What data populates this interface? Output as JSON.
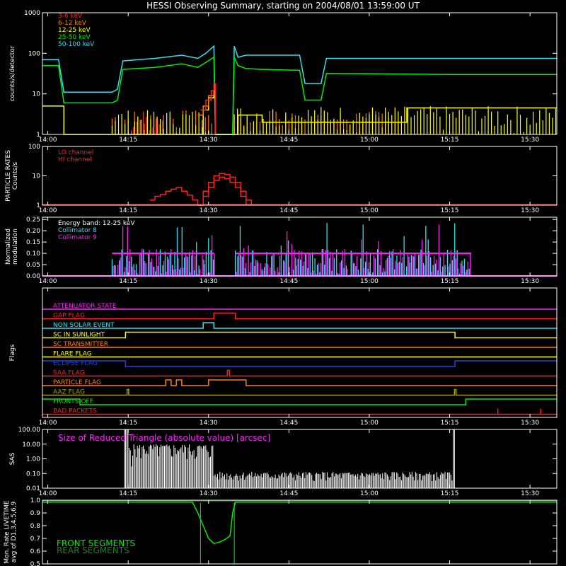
{
  "title": "HESSI Observing Summary, starting on 2004/08/01 13:59:00 UT",
  "colors": {
    "bg": "#000000",
    "axis": "#ffffff",
    "red": "#ff2020",
    "orange": "#ff8000",
    "yellow": "#ffff00",
    "green": "#00ee00",
    "cyan": "#30e0f0",
    "magenta": "#ff20ff",
    "blue": "#2040ff",
    "white": "#ffffff",
    "olive": "#a0a000",
    "darkgreen": "#208020"
  },
  "x_axis": {
    "tick_labels": [
      "14:00",
      "14:15",
      "14:30",
      "14:45",
      "15:00",
      "15:15",
      "15:30"
    ],
    "tick_minutes": [
      0,
      15,
      30,
      45,
      60,
      75,
      90
    ],
    "range_minutes": [
      -1,
      95
    ]
  },
  "chart_data": [
    {
      "id": "count_rates",
      "type": "line",
      "ylabel": "counts/s/detector",
      "y_scale": "log",
      "ylim": [
        1,
        1000
      ],
      "y_tick_labels": [
        "1",
        "10",
        "100",
        "1000"
      ],
      "y_tick_values": [
        1,
        10,
        100,
        1000
      ],
      "legend": [
        {
          "name": "3-6 keV",
          "color": "#ff2020"
        },
        {
          "name": "6-12 keV",
          "color": "#ff8000"
        },
        {
          "name": "12-25 keV",
          "color": "#ffff00"
        },
        {
          "name": "25-50 keV",
          "color": "#00ee00"
        },
        {
          "name": "50-100 keV",
          "color": "#30e0f0"
        }
      ],
      "series": [
        {
          "name": "50-100 keV",
          "color": "#30e0f0",
          "x": [
            -1,
            2,
            3,
            12,
            13,
            14,
            20,
            25,
            28,
            29.5,
            31,
            31.3,
            34.5,
            34.8,
            35.5,
            37,
            40,
            47,
            48,
            51,
            52,
            75,
            95
          ],
          "y": [
            70,
            70,
            11,
            11,
            13,
            65,
            75,
            90,
            75,
            100,
            150,
            1,
            1,
            150,
            80,
            90,
            90,
            90,
            18,
            18,
            75,
            75,
            75
          ]
        },
        {
          "name": "25-50 keV",
          "color": "#00ee00",
          "x": [
            -1,
            2,
            3,
            12,
            13,
            14,
            20,
            25,
            28,
            29.5,
            31,
            31.3,
            34.5,
            34.8,
            35.5,
            37,
            40,
            47,
            48,
            51,
            52,
            75,
            95
          ],
          "y": [
            50,
            50,
            6,
            6,
            7,
            40,
            45,
            55,
            45,
            60,
            80,
            1,
            1,
            80,
            50,
            42,
            40,
            38,
            7,
            7,
            32,
            30,
            30
          ]
        },
        {
          "name": "12-25 keV",
          "color": "#ffff00",
          "x": [
            -1,
            2,
            3,
            12,
            29,
            30,
            31,
            31.3,
            34.8,
            35.5,
            40,
            66,
            67,
            95
          ],
          "y": [
            5,
            5,
            1,
            1,
            4,
            8,
            12,
            1,
            1,
            3,
            2,
            2,
            4.5,
            4.5
          ]
        },
        {
          "name": "6-12 keV",
          "color": "#ff8000",
          "x": [
            28,
            29,
            30,
            31,
            31.3
          ],
          "y": [
            3,
            5,
            9,
            15,
            1
          ]
        },
        {
          "name": "3-6 keV",
          "color": "#ff2020",
          "x": [
            28.5,
            29.5,
            30.5,
            31,
            31.3
          ],
          "y": [
            4,
            7,
            12,
            18,
            1
          ]
        }
      ]
    },
    {
      "id": "particle_rates",
      "type": "line",
      "ylabel": "PARTICLE RATES Counts/s",
      "y_scale": "log",
      "ylim": [
        1,
        100
      ],
      "y_tick_labels": [
        "1",
        "10",
        "100"
      ],
      "y_tick_values": [
        1,
        10,
        100
      ],
      "legend": [
        {
          "name": "LO channel",
          "color": "#ff2020"
        },
        {
          "name": "HI channel",
          "color": "#ff2020"
        }
      ],
      "series": [
        {
          "name": "LO channel",
          "color": "#ff2020",
          "x": [
            19,
            20,
            21,
            22,
            23,
            24,
            25,
            26,
            27,
            28,
            29,
            30,
            31,
            32,
            33,
            34,
            35,
            36,
            37,
            38
          ],
          "y": [
            1.5,
            2,
            2.3,
            3,
            3.5,
            4,
            3,
            2.2,
            1.5,
            1,
            3,
            6,
            10,
            12,
            11,
            9,
            6,
            3,
            1.5,
            1
          ]
        },
        {
          "name": "HI channel",
          "color": "#ff2020",
          "x": [
            29,
            30,
            31,
            32,
            33,
            34,
            35,
            36,
            37
          ],
          "y": [
            2,
            4,
            7,
            9,
            8,
            6,
            4,
            2,
            1
          ]
        }
      ]
    },
    {
      "id": "modulation",
      "type": "line",
      "ylabel": "Normalized modulation",
      "ylim": [
        0,
        0.26
      ],
      "y_tick_labels": [
        "0.00",
        "0.05",
        "0.10",
        "0.15",
        "0.20",
        "0.25"
      ],
      "y_tick_values": [
        0,
        0.05,
        0.1,
        0.15,
        0.2,
        0.25
      ],
      "legend": [
        {
          "name": "Energy band: 12-25 keV",
          "color": "#ffffff"
        },
        {
          "name": "Collimator 8",
          "color": "#30e0f0"
        },
        {
          "name": "Collimator 9",
          "color": "#ff20ff"
        }
      ],
      "series": [
        {
          "name": "Collimator 8",
          "color": "#30e0f0",
          "segments": [
            [
              12,
              31
            ],
            [
              35,
              79
            ]
          ],
          "level": 0.1
        },
        {
          "name": "Collimator 9",
          "color": "#ff20ff",
          "segments": [
            [
              12,
              31
            ],
            [
              35,
              79
            ]
          ],
          "level": 0.1
        }
      ]
    },
    {
      "id": "flags",
      "type": "line",
      "ylabel": "Flags",
      "series": [
        {
          "name": "ATTENUATOR STATE",
          "color": "#ff20ff",
          "x": [
            -1,
            95
          ],
          "y": [
            0,
            0
          ]
        },
        {
          "name": "GAP FLAG",
          "color": "#ff2020",
          "x": [
            -1,
            31,
            31,
            35,
            35,
            95
          ],
          "y": [
            0,
            0,
            1,
            1,
            0,
            0
          ]
        },
        {
          "name": "NON SOLAR EVENT",
          "color": "#30e0f0",
          "x": [
            -1,
            29,
            29,
            31,
            31,
            95
          ],
          "y": [
            0,
            0,
            1,
            1,
            0,
            0
          ]
        },
        {
          "name": "SC IN SUNLIGHT",
          "color": "#ffff00",
          "x": [
            -1,
            14.5,
            14.5,
            76,
            76,
            95
          ],
          "y": [
            0,
            0,
            1,
            1,
            0,
            0
          ]
        },
        {
          "name": "SC TRANSMITTER",
          "color": "#ff8000",
          "x": [
            -1,
            95
          ],
          "y": [
            0,
            0
          ]
        },
        {
          "name": "FLARE FLAG",
          "color": "#ffff00",
          "x": [
            -1,
            95
          ],
          "y": [
            0,
            0
          ]
        },
        {
          "name": "ECLIPSE FLAG",
          "color": "#2040ff",
          "x": [
            -1,
            14.5,
            14.5,
            76,
            76,
            95
          ],
          "y": [
            1,
            1,
            0,
            0,
            1,
            1
          ]
        },
        {
          "name": "SAA FLAG",
          "color": "#ff2020",
          "x": [
            -1,
            33.5,
            33.5,
            33.9,
            33.9,
            95
          ],
          "y": [
            0,
            0,
            1,
            1,
            0,
            0
          ]
        },
        {
          "name": "PARTICLE FLAG",
          "color": "#ff8000",
          "x": [
            -1,
            22,
            22,
            23,
            23,
            24,
            24,
            25,
            25,
            30,
            30,
            37,
            37,
            95
          ],
          "y": [
            0,
            0,
            1,
            1,
            0,
            0,
            1,
            1,
            0,
            0,
            1,
            1,
            0,
            0
          ]
        },
        {
          "name": "AAZ FLAG",
          "color": "#a0a000",
          "x": [
            -1,
            14.8,
            14.8,
            15.1,
            15.1,
            75.9,
            75.9,
            76.2,
            76.2,
            95
          ],
          "y": [
            0,
            0,
            1,
            1,
            0,
            0,
            1,
            1,
            0,
            0
          ]
        },
        {
          "name": "FRONTS OFF",
          "color": "#00ee00",
          "x": [
            -1,
            6,
            6,
            78,
            78,
            95
          ],
          "y": [
            1,
            1,
            0,
            0,
            1,
            1
          ]
        },
        {
          "name": "BAD PACKETS",
          "color": "#ff2020",
          "x": [
            -1,
            95
          ],
          "y": [
            0,
            0
          ],
          "spikes": [
            84,
            92
          ]
        }
      ]
    },
    {
      "id": "sas",
      "type": "line",
      "ylabel": "SAS",
      "y_scale": "log",
      "ylim": [
        0.01,
        100
      ],
      "y_tick_labels": [
        "0.01",
        "0.10",
        "1.00",
        "10.00",
        "100.00"
      ],
      "y_tick_values": [
        0.01,
        0.1,
        1,
        10,
        100
      ],
      "annotation": "Size of Reduced Triangle (absolute value) [arcsec]",
      "series": [
        {
          "name": "Size of Reduced Triangle (absolute value) [arcsec]",
          "color": "#ffffff",
          "segments": [
            [
              14.3,
              76
            ]
          ]
        }
      ]
    },
    {
      "id": "livetime",
      "type": "line",
      "ylabel": "Mon. Rate LIVETIME avg of D1,3,4,5,6,9",
      "ylim": [
        0.5,
        1.0
      ],
      "y_tick_labels": [
        "0.5",
        "0.6",
        "0.7",
        "0.8",
        "0.9",
        "1.0"
      ],
      "y_tick_values": [
        0.5,
        0.6,
        0.7,
        0.8,
        0.9,
        1.0
      ],
      "legend": [
        {
          "name": "FRONT SEGMENTS",
          "color": "#00ee00"
        },
        {
          "name": "REAR SEGMENTS",
          "color": "#208020"
        }
      ],
      "series": [
        {
          "name": "FRONT SEGMENTS",
          "color": "#00ee00",
          "x": [
            -1,
            27,
            28,
            29,
            30,
            31,
            32,
            33,
            34,
            34.5,
            35,
            95
          ],
          "y": [
            0.985,
            0.985,
            0.9,
            0.8,
            0.7,
            0.66,
            0.67,
            0.69,
            0.72,
            0.9,
            0.985,
            0.985
          ]
        },
        {
          "name": "REAR SEGMENTS",
          "color": "#208020",
          "x": [
            -1,
            95
          ],
          "y": [
            0.995,
            0.995
          ]
        }
      ]
    }
  ]
}
